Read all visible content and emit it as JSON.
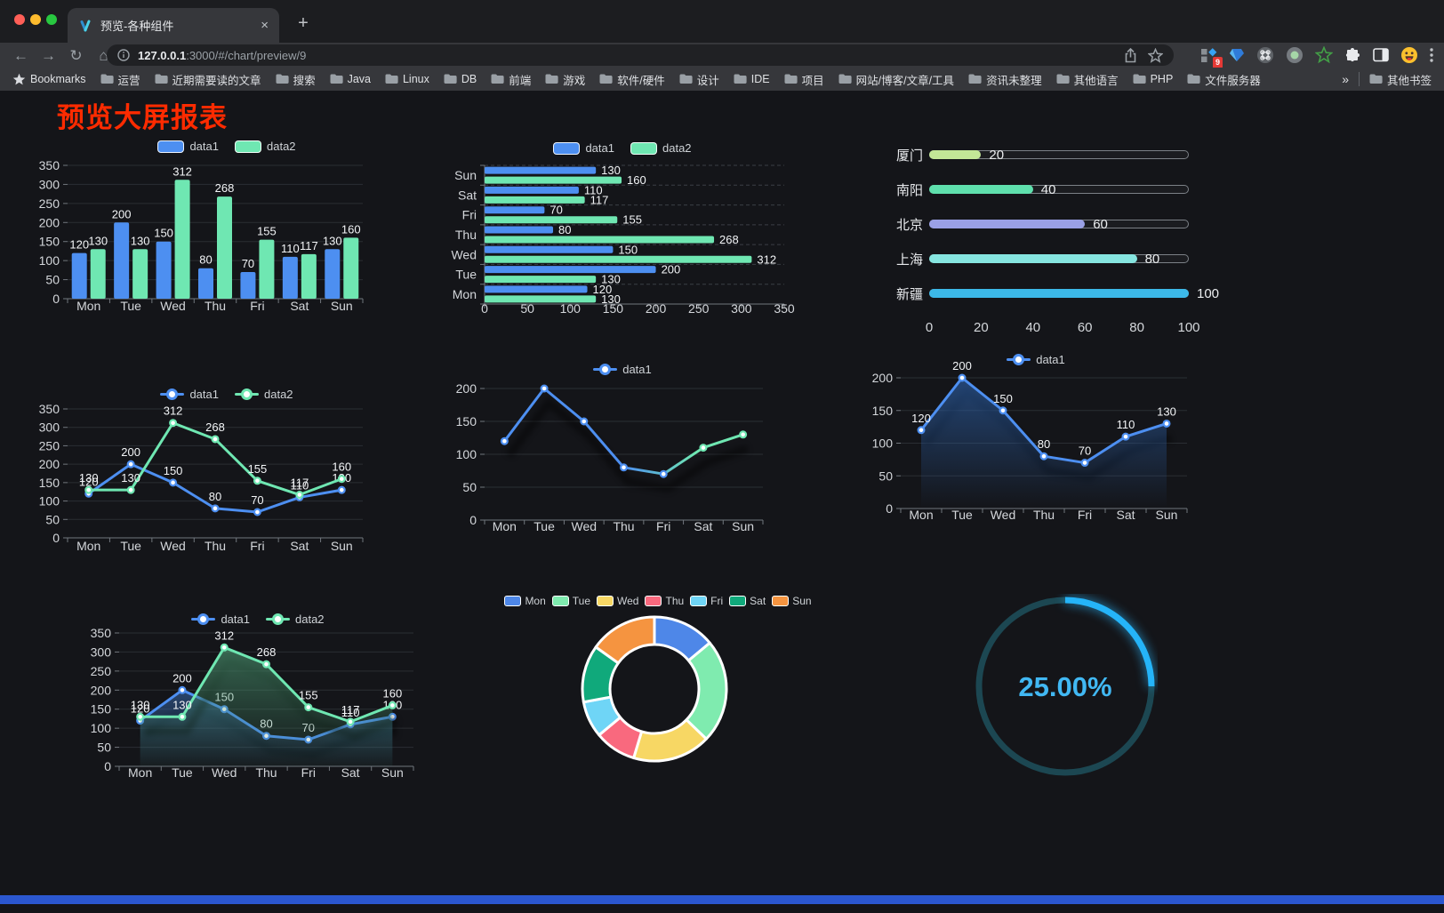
{
  "window": {
    "traffic_lights": [
      "#FF5F57",
      "#FEBC2E",
      "#28C840"
    ]
  },
  "browser": {
    "tab": {
      "title": "预览-各种组件"
    },
    "new_tab_button": "+",
    "address": {
      "host": "127.0.0.1",
      "rest": ":3000/#/chart/preview/9"
    },
    "extension_badge": "9",
    "bookmarks_bar": {
      "label": "Bookmarks",
      "folders": [
        "运营",
        "近期需要读的文章",
        "搜索",
        "Java",
        "Linux",
        "DB",
        "前端",
        "游戏",
        "软件/硬件",
        "设计",
        "IDE",
        "项目",
        "网站/博客/文章/工具",
        "资讯未整理",
        "其他语言",
        "PHP",
        "文件服务器"
      ],
      "overflow": "»",
      "other": "其他书签"
    }
  },
  "page": {
    "title": "预览大屏报表",
    "title_color": "#FF2B00",
    "background": "#141519",
    "footer_bar_color": "#2B57D0"
  },
  "chart_data": [
    {
      "id": "c1",
      "type": "bar",
      "categories": [
        "Mon",
        "Tue",
        "Wed",
        "Thu",
        "Fri",
        "Sat",
        "Sun"
      ],
      "series": [
        {
          "name": "data1",
          "color": "#4D8FF1",
          "values": [
            120,
            200,
            150,
            80,
            70,
            110,
            130
          ],
          "labels": true
        },
        {
          "name": "data2",
          "color": "#6FE7B2",
          "values": [
            130,
            130,
            312,
            268,
            155,
            117,
            160
          ],
          "labels": true
        }
      ],
      "ylim": [
        0,
        350
      ],
      "ytick_step": 50,
      "grid": true,
      "legend_position": "top"
    },
    {
      "id": "c2",
      "type": "bar-horizontal",
      "categories": [
        "Mon",
        "Tue",
        "Wed",
        "Thu",
        "Fri",
        "Sat",
        "Sun"
      ],
      "display_order_top_to_bottom": [
        "Sun",
        "Sat",
        "Fri",
        "Thu",
        "Wed",
        "Tue",
        "Mon"
      ],
      "series": [
        {
          "name": "data1",
          "color": "#4D8FF1",
          "values": [
            120,
            200,
            150,
            80,
            70,
            110,
            130
          ],
          "labels": true
        },
        {
          "name": "data2",
          "color": "#6FE7B2",
          "values": [
            130,
            130,
            312,
            268,
            155,
            117,
            160
          ],
          "labels": true
        }
      ],
      "xlim": [
        0,
        350
      ],
      "xtick_step": 50,
      "grid": "dashed",
      "legend_position": "top"
    },
    {
      "id": "c3",
      "type": "progress",
      "items": [
        {
          "label": "厦门",
          "value": 20,
          "color": "#C3E797"
        },
        {
          "label": "南阳",
          "value": 40,
          "color": "#5FE0AD"
        },
        {
          "label": "北京",
          "value": 60,
          "color": "#9AA0E5"
        },
        {
          "label": "上海",
          "value": 80,
          "color": "#86E5E0"
        },
        {
          "label": "新疆",
          "value": 100,
          "color": "#3CB8E8"
        }
      ],
      "xticks": [
        0,
        20,
        40,
        60,
        80,
        100
      ],
      "xlim": [
        0,
        100
      ]
    },
    {
      "id": "c4",
      "type": "line",
      "categories": [
        "Mon",
        "Tue",
        "Wed",
        "Thu",
        "Fri",
        "Sat",
        "Sun"
      ],
      "series": [
        {
          "name": "data1",
          "color": "#4D8FF1",
          "values": [
            120,
            200,
            150,
            80,
            70,
            110,
            130
          ],
          "labels": true
        },
        {
          "name": "data2",
          "color": "#6FE7B2",
          "values": [
            130,
            130,
            312,
            268,
            155,
            117,
            160
          ],
          "labels": true
        }
      ],
      "ylim": [
        0,
        350
      ],
      "ytick_step": 50,
      "grid": true,
      "legend_position": "top"
    },
    {
      "id": "c5",
      "type": "line",
      "categories": [
        "Mon",
        "Tue",
        "Wed",
        "Thu",
        "Fri",
        "Sat",
        "Sun"
      ],
      "series": [
        {
          "name": "data1",
          "color": "#4D8FF1",
          "gradient_to": "#6FE7B2",
          "values": [
            120,
            200,
            150,
            80,
            70,
            110,
            130
          ],
          "labels": false
        }
      ],
      "ylim": [
        0,
        200
      ],
      "ytick_step": 50,
      "grid": true,
      "shadow": true,
      "legend_position": "top"
    },
    {
      "id": "c6",
      "type": "line",
      "categories": [
        "Mon",
        "Tue",
        "Wed",
        "Thu",
        "Fri",
        "Sat",
        "Sun"
      ],
      "series": [
        {
          "name": "data1",
          "color": "#4D8FF1",
          "values": [
            120,
            200,
            150,
            80,
            70,
            110,
            130
          ],
          "labels": true,
          "area": [
            "rgba(44,96,168,0.65)",
            "rgba(44,96,168,0)"
          ]
        }
      ],
      "ylim": [
        0,
        200
      ],
      "ytick_step": 50,
      "grid": true,
      "shadow": true,
      "legend_position": "top"
    },
    {
      "id": "c7",
      "type": "area",
      "categories": [
        "Mon",
        "Tue",
        "Wed",
        "Thu",
        "Fri",
        "Sat",
        "Sun"
      ],
      "series": [
        {
          "name": "data1",
          "color": "#4D8FF1",
          "values": [
            120,
            200,
            150,
            80,
            70,
            110,
            130
          ],
          "labels": true,
          "area": [
            "rgba(58,110,180,0.55)",
            "rgba(58,110,180,0.02)"
          ]
        },
        {
          "name": "data2",
          "color": "#6FE7B2",
          "values": [
            130,
            130,
            312,
            268,
            155,
            117,
            160
          ],
          "labels": true,
          "area": [
            "rgba(80,160,120,0.60)",
            "rgba(60,130,95,0.05)"
          ]
        }
      ],
      "ylim": [
        0,
        350
      ],
      "ytick_step": 50,
      "grid": true,
      "shadow": true,
      "legend_position": "top"
    },
    {
      "id": "c8",
      "type": "pie",
      "donut": true,
      "items": [
        {
          "label": "Mon",
          "value": 120,
          "color": "#4E87E8"
        },
        {
          "label": "Tue",
          "value": 200,
          "color": "#7FEBAF"
        },
        {
          "label": "Wed",
          "value": 150,
          "color": "#F7D764"
        },
        {
          "label": "Thu",
          "value": 80,
          "color": "#F9697E"
        },
        {
          "label": "Fri",
          "value": 70,
          "color": "#6FD5F6"
        },
        {
          "label": "Sat",
          "value": 110,
          "color": "#10A97B"
        },
        {
          "label": "Sun",
          "value": 130,
          "color": "#F59440"
        }
      ],
      "legend_position": "top"
    },
    {
      "id": "c9",
      "type": "gauge",
      "label": "25.00%",
      "percent": 25,
      "color": "#25B4F8",
      "track_color": "#1C4752",
      "text_color": "#41B8F3"
    }
  ]
}
